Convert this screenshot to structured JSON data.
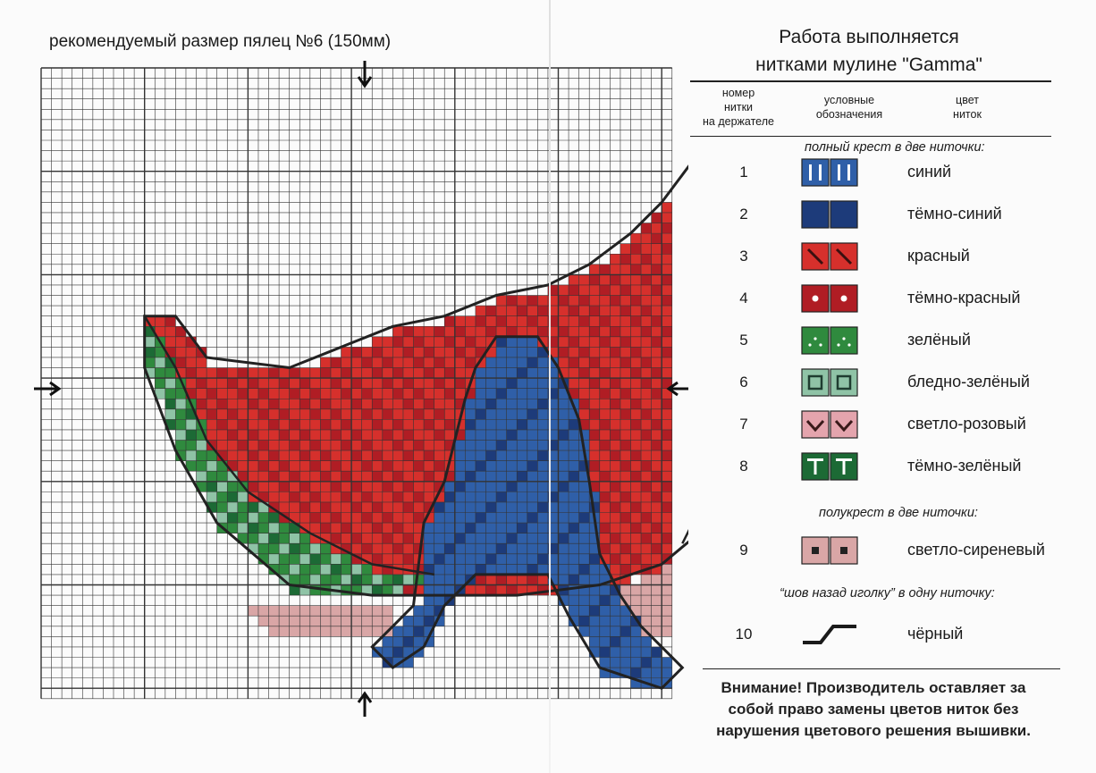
{
  "scheme_title": "рекомендуемый размер пялец №6 (150мм)",
  "legend": {
    "title_line1": "Работа выполняется",
    "title_line2": "нитками мулине \"Gamma\"",
    "col_number": [
      "номер",
      "нитки",
      "на держателе"
    ],
    "col_symbol": [
      "условные",
      "обозначения"
    ],
    "col_color": [
      "цвет",
      "ниток"
    ],
    "section_full_cross": "полный крест в две ниточки:",
    "section_half_cross": "полукрест в две ниточки:",
    "section_backstitch": "“шов назад иголку” в одну ниточку:",
    "threads": [
      {
        "num": "1",
        "name": "синий",
        "symbol": "bars",
        "color": "#2f5fa8"
      },
      {
        "num": "2",
        "name": "тёмно-синий",
        "symbol": "moon",
        "color": "#1d3b7a"
      },
      {
        "num": "3",
        "name": "красный",
        "symbol": "slash",
        "color": "#d6302c"
      },
      {
        "num": "4",
        "name": "тёмно-красный",
        "symbol": "dot",
        "color": "#b01d24"
      },
      {
        "num": "5",
        "name": "зелёный",
        "symbol": "dots",
        "color": "#2f8a3e"
      },
      {
        "num": "6",
        "name": "бледно-зелёный",
        "symbol": "square",
        "color": "#8fc3a6"
      },
      {
        "num": "7",
        "name": "светло-розовый",
        "symbol": "vee",
        "color": "#e4a4ad"
      },
      {
        "num": "8",
        "name": "тёмно-зелёный",
        "symbol": "tee",
        "color": "#1c6a35"
      },
      {
        "num": "9",
        "name": "светло-сиреневый",
        "symbol": "smallsq",
        "color": "#d9a6a6"
      },
      {
        "num": "10",
        "name": "чёрный",
        "symbol": "line",
        "color": "#1a1a1a"
      }
    ],
    "notice": [
      "Внимание! Производитель оставляет за",
      "собой право замены цветов ниток без",
      "нарушения цветового решения вышивки."
    ]
  }
}
